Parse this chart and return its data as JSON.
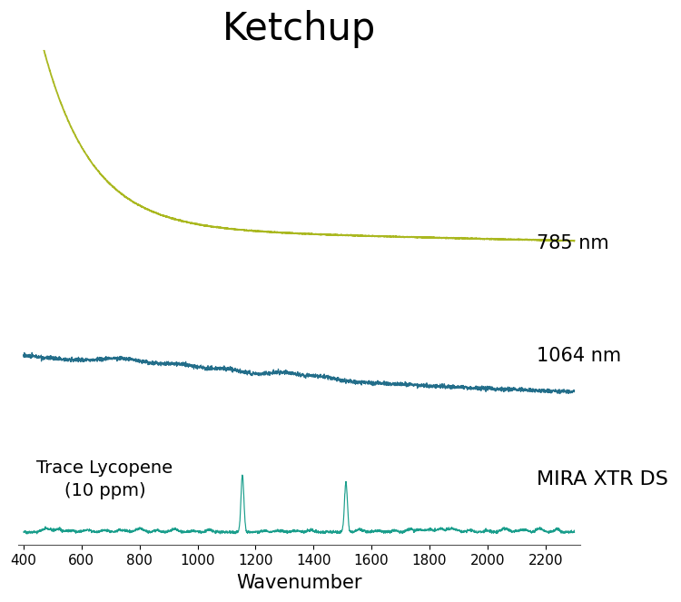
{
  "title": "Ketchup",
  "title_fontsize": 30,
  "xlabel": "Wavenumber",
  "xlabel_fontsize": 15,
  "xmin": 400,
  "xmax": 2300,
  "color_785nm": "#aab820",
  "color_1064nm": "#236e8a",
  "color_xtr": "#1a9e8c",
  "label_785nm": "785 nm",
  "label_1064nm": "1064 nm",
  "label_xtr": "MIRA XTR DS",
  "label_lycopene": "Trace Lycopene\n(10 ppm)",
  "label_fontsize": 14,
  "label_xtr_fontsize": 16
}
